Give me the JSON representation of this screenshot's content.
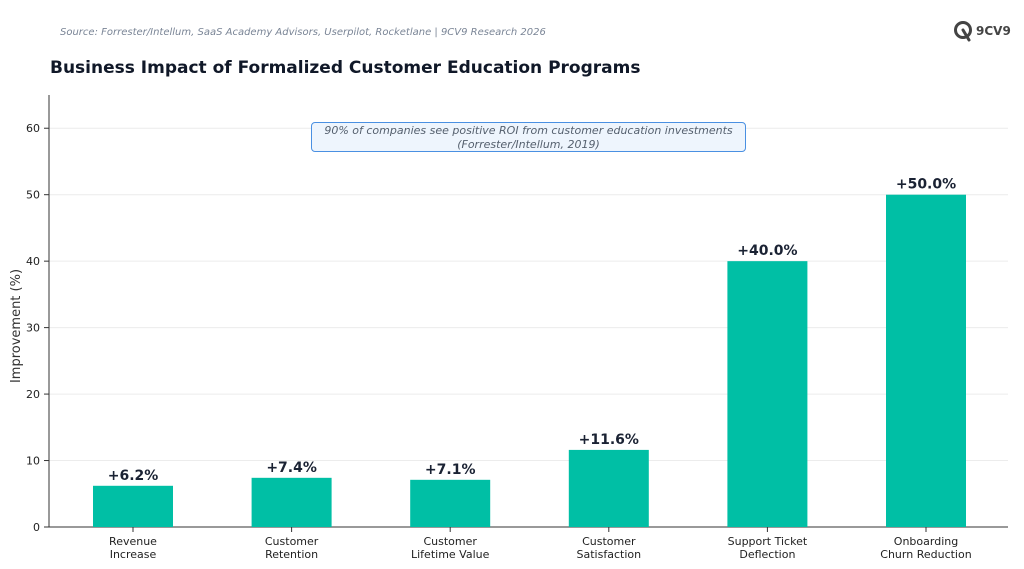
{
  "header": {
    "source": "Source: Forrester/Intellum, SaaS Academy Advisors, Userpilot, Rocketlane | 9CV9 Research 2026",
    "logo_text": "9CV9"
  },
  "annotation": {
    "line1": "90% of companies see positive ROI from customer education investments",
    "line2": "(Forrester/Intellum, 2019)"
  },
  "chart_data": {
    "type": "bar",
    "title": "Business Impact of Formalized Customer Education Programs",
    "xlabel": "",
    "ylabel": "Improvement (%)",
    "categories": [
      [
        "Revenue",
        "Increase"
      ],
      [
        "Customer",
        "Retention"
      ],
      [
        "Customer",
        "Lifetime Value"
      ],
      [
        "Customer",
        "Satisfaction"
      ],
      [
        "Support Ticket",
        "Deflection"
      ],
      [
        "Onboarding",
        "Churn Reduction"
      ]
    ],
    "values": [
      6.2,
      7.4,
      7.1,
      11.6,
      40.0,
      50.0
    ],
    "data_labels": [
      "+6.2%",
      "+7.4%",
      "+7.1%",
      "+11.6%",
      "+40.0%",
      "+50.0%"
    ],
    "ylim": [
      0,
      65
    ],
    "yticks": [
      0,
      10,
      20,
      30,
      40,
      50,
      60
    ],
    "grid": true,
    "bar_color": "#00bfa5"
  }
}
